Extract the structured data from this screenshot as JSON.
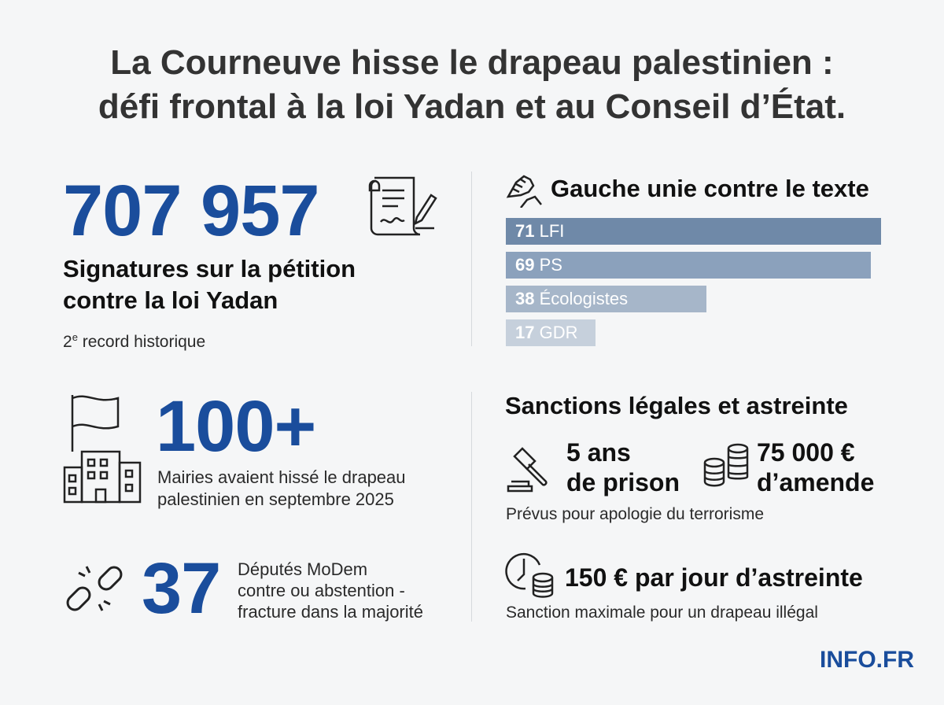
{
  "title": {
    "line1": "La Courneuve hisse le drapeau palestinien :",
    "line2": "défi frontal à la loi Yadan et au Conseil d’État."
  },
  "petition": {
    "number": "707 957",
    "label_line1": "Signatures sur la pétition",
    "label_line2": "contre la loi Yadan",
    "note_prefix": "2",
    "note_sup": "e",
    "note_suffix": " record historique"
  },
  "vote": {
    "heading": "Gauche unie contre le texte"
  },
  "chart_data": {
    "type": "bar",
    "orientation": "horizontal",
    "categories": [
      "LFI",
      "PS",
      "Écologistes",
      "GDR"
    ],
    "values": [
      71,
      69,
      38,
      17
    ],
    "colors": [
      "#6f89a8",
      "#8ba1bc",
      "#a6b6c9",
      "#c6d0dc"
    ]
  },
  "mairies": {
    "number": "100+",
    "label_line1": "Mairies avaient hissé le drapeau",
    "label_line2": "palestinien en septembre 2025"
  },
  "modem": {
    "number": "37",
    "line1": "Députés MoDem",
    "line2": "contre ou abstention -",
    "line3": "fracture dans la majorité"
  },
  "sanctions": {
    "heading": "Sanctions légales et astreinte",
    "prison_line1": "5 ans",
    "prison_line2": "de prison",
    "fine_line1": "75 000 €",
    "fine_line2": "d’amende",
    "note1": "Prévus pour apologie du terrorisme",
    "astreinte": "150 € par jour d’astreinte",
    "note2": "Sanction maximale pour un drapeau illégal"
  },
  "logo": "INFO.FR",
  "colors": {
    "accent": "#1a4d9c",
    "background": "#f5f6f7"
  }
}
